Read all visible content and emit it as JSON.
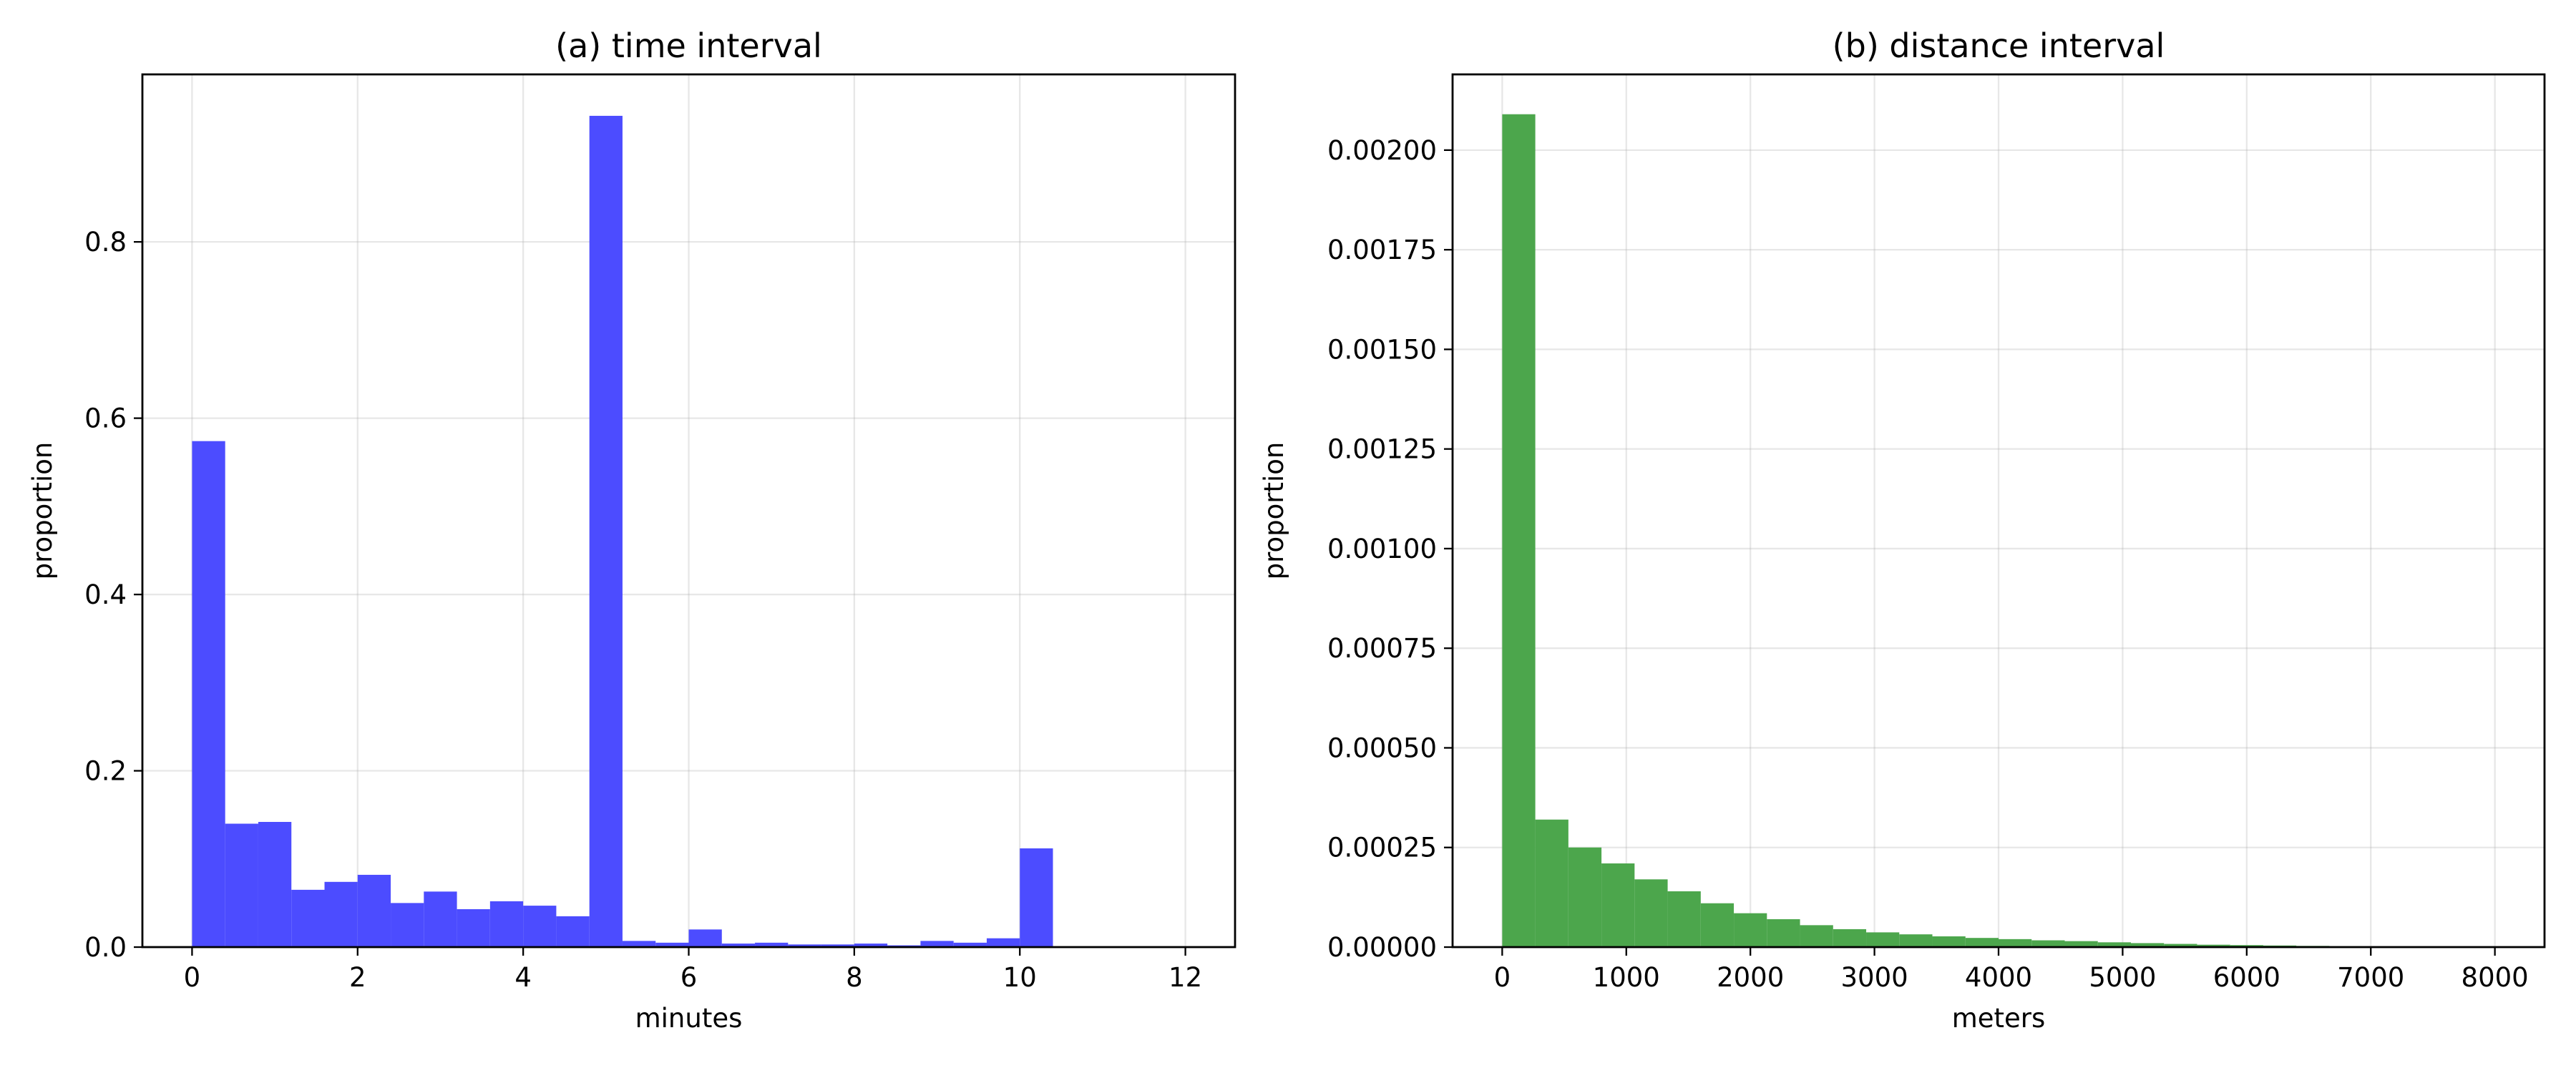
{
  "chart_data": [
    {
      "type": "bar",
      "title": "(a) time interval",
      "xlabel": "minutes",
      "ylabel": "proportion",
      "xlim": [
        -0.6,
        12.6
      ],
      "ylim": [
        0,
        0.99
      ],
      "xticks": [
        0,
        2,
        4,
        6,
        8,
        10,
        12
      ],
      "xtick_labels": [
        "0",
        "2",
        "4",
        "6",
        "8",
        "10",
        "12"
      ],
      "yticks": [
        0.0,
        0.2,
        0.4,
        0.6,
        0.8
      ],
      "ytick_labels": [
        "0.0",
        "0.2",
        "0.4",
        "0.6",
        "0.8"
      ],
      "grid": true,
      "color": "#4c4cff",
      "bin_width": 0.4,
      "bin_start": 0,
      "values": [
        0.574,
        0.14,
        0.142,
        0.065,
        0.074,
        0.082,
        0.05,
        0.063,
        0.043,
        0.052,
        0.047,
        0.035,
        0.943,
        0.007,
        0.005,
        0.02,
        0.004,
        0.005,
        0.003,
        0.003,
        0.004,
        0.002,
        0.007,
        0.005,
        0.01,
        0.112,
        0.0,
        0.0,
        0.0,
        0.0
      ]
    },
    {
      "type": "bar",
      "title": "(b) distance interval",
      "xlabel": "meters",
      "ylabel": "proportion",
      "xlim": [
        -400,
        8400
      ],
      "ylim": [
        0,
        0.00219
      ],
      "xticks": [
        0,
        1000,
        2000,
        3000,
        4000,
        5000,
        6000,
        7000,
        8000
      ],
      "xtick_labels": [
        "0",
        "1000",
        "2000",
        "3000",
        "4000",
        "5000",
        "6000",
        "7000",
        "8000"
      ],
      "yticks": [
        0.0,
        0.00025,
        0.0005,
        0.00075,
        0.001,
        0.00125,
        0.0015,
        0.00175,
        0.002
      ],
      "ytick_labels": [
        "0.00000",
        "0.00025",
        "0.00050",
        "0.00075",
        "0.00100",
        "0.00125",
        "0.00150",
        "0.00175",
        "0.00200"
      ],
      "grid": true,
      "color": "#4ca64c",
      "bin_width": 266.67,
      "bin_start": 0,
      "values": [
        0.00209,
        0.00032,
        0.00025,
        0.00021,
        0.00017,
        0.00014,
        0.00011,
        8.5e-05,
        7e-05,
        5.5e-05,
        4.5e-05,
        3.7e-05,
        3.2e-05,
        2.7e-05,
        2.3e-05,
        2e-05,
        1.7e-05,
        1.5e-05,
        1.2e-05,
        1e-05,
        8e-06,
        6e-06,
        5e-06,
        4e-06,
        3e-06,
        2e-06,
        1.5e-06,
        1e-06,
        8e-07,
        5e-07
      ]
    }
  ]
}
